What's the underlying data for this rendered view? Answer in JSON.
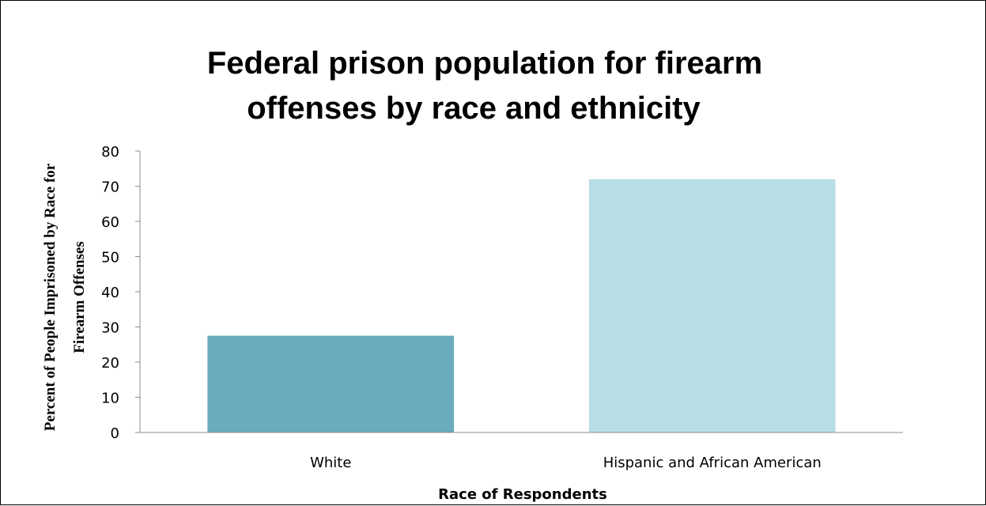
{
  "chart_data": {
    "type": "bar",
    "title": "Federal prison population for firearm offenses by race and ethnicity",
    "title_lines": [
      "Federal prison population for firearm",
      "offenses by race and ethnicity"
    ],
    "xlabel": "Race of Respondents",
    "ylabel": "Percent of People Imprisoned by Race for Firearm Offenses",
    "ylabel_lines": [
      "Percent of People Imprisoned by Race for",
      "Firearm Offenses"
    ],
    "categories": [
      "White",
      "Hispanic and African American"
    ],
    "values": [
      27.5,
      72.0
    ],
    "ylim": [
      0,
      80
    ],
    "yticks": [
      "0",
      "10",
      "20",
      "30",
      "40",
      "50",
      "60",
      "70",
      "80"
    ],
    "grid": false,
    "legend": "none",
    "colors": [
      "#6aabbd",
      "#b8dde7"
    ]
  }
}
